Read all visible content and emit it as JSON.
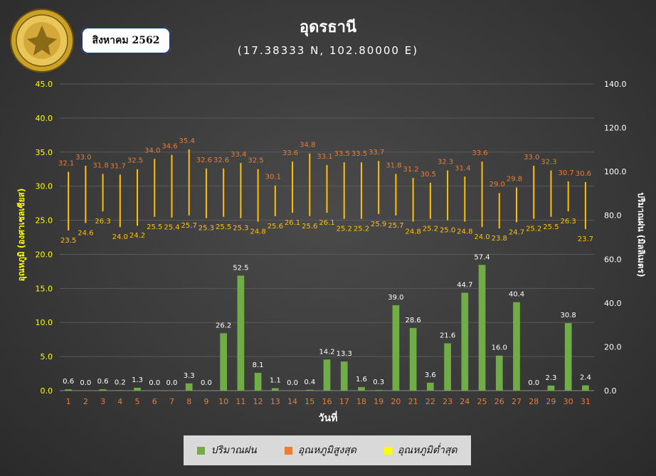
{
  "header": {
    "title": "อุดรธานี",
    "subtitle": "(17.38333 N, 102.80000 E)",
    "month_label": "สิงหาคม 2562",
    "logo_text": "กรมอุตุนิยมวิทยา METEOROLOGICAL DEPARTMENT"
  },
  "legend": {
    "rain": "ปริมาณฝน",
    "max_temp": "อุณหภูมิสูงสุด",
    "min_temp": "อุณหภูมิต่ำสุด"
  },
  "colors": {
    "rain": "#70ad47",
    "max_temp": "#ed7d31",
    "min_temp": "#ffff00",
    "range_line": "#ffc000",
    "left_axis": "#ffff00",
    "right_axis": "#ffffff",
    "x_ticks": "#ed7d31",
    "rain_label": "#ffffff",
    "max_label": "#ed7d31",
    "min_label": "#ffc000"
  },
  "chart_data": {
    "type": "bar",
    "xlabel": "วันที่",
    "ylabel_left": "อุณหภูมิ (องศาเซลเซียส)",
    "ylabel_right": "ปริมาณฝน (มิลลิเมตร)",
    "ylim_left": [
      0,
      45
    ],
    "ylim_right": [
      0,
      140
    ],
    "yticks_left": [
      "0.0",
      "5.0",
      "10.0",
      "15.0",
      "20.0",
      "25.0",
      "30.0",
      "35.0",
      "40.0",
      "45.0"
    ],
    "yticks_right": [
      "0.0",
      "20.0",
      "40.0",
      "60.0",
      "80.0",
      "100.0",
      "120.0",
      "140.0"
    ],
    "categories": [
      "1",
      "2",
      "3",
      "4",
      "5",
      "6",
      "7",
      "8",
      "9",
      "10",
      "11",
      "12",
      "13",
      "14",
      "15",
      "16",
      "17",
      "18",
      "19",
      "20",
      "21",
      "22",
      "23",
      "24",
      "25",
      "26",
      "27",
      "28",
      "29",
      "30",
      "31"
    ],
    "grid": true,
    "legend_position": "bottom",
    "series": [
      {
        "name": "ปริมาณฝน",
        "type": "bar",
        "axis": "right",
        "values": [
          0.6,
          0.0,
          0.6,
          0.2,
          1.3,
          0.0,
          0.0,
          3.3,
          0.0,
          26.2,
          52.5,
          8.1,
          1.1,
          0.0,
          0.4,
          14.2,
          13.3,
          1.6,
          0.3,
          39.0,
          28.6,
          3.6,
          21.6,
          44.7,
          57.4,
          16.0,
          40.4,
          0.0,
          2.3,
          30.8,
          2.4
        ]
      },
      {
        "name": "อุณหภูมิสูงสุด",
        "type": "range_high",
        "axis": "left",
        "values": [
          32.1,
          33.0,
          31.8,
          31.7,
          32.5,
          34.0,
          34.6,
          35.4,
          32.6,
          32.6,
          33.4,
          32.5,
          30.1,
          33.6,
          34.8,
          33.1,
          33.5,
          33.5,
          33.7,
          31.8,
          31.2,
          30.5,
          32.3,
          31.4,
          33.6,
          29.0,
          29.8,
          33.0,
          32.3,
          30.7,
          30.6
        ]
      },
      {
        "name": "อุณหภูมิต่ำสุด",
        "type": "range_low",
        "axis": "left",
        "values": [
          23.5,
          24.6,
          26.3,
          24.0,
          24.2,
          25.5,
          25.4,
          25.7,
          25.3,
          25.5,
          25.3,
          24.8,
          25.6,
          26.1,
          25.6,
          26.1,
          25.2,
          25.2,
          25.9,
          25.7,
          24.8,
          25.2,
          25.0,
          24.8,
          24.0,
          23.8,
          24.7,
          25.2,
          25.5,
          26.3,
          23.7
        ]
      }
    ]
  }
}
